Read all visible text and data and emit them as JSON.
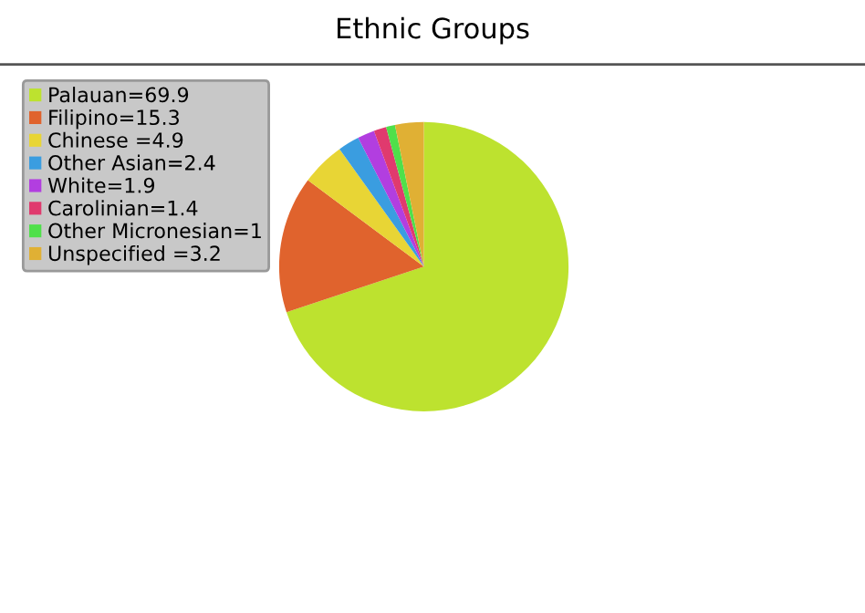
{
  "chart_data": {
    "type": "pie",
    "title": "Ethnic Groups",
    "categories": [
      "Palauan=69.9",
      "Filipino=15.3",
      "Chinese =4.9",
      "Other Asian=2.4",
      "White=1.9",
      "Carolinian=1.4",
      "Other Micronesian=1",
      "Unspecified =3.2"
    ],
    "values": [
      69.9,
      15.3,
      4.9,
      2.4,
      1.9,
      1.4,
      1.0,
      3.2
    ],
    "colors": [
      "#bde22f",
      "#e0632d",
      "#e8d535",
      "#3a9de0",
      "#b23ee0",
      "#e03a6e",
      "#4fe04a",
      "#e0b034"
    ],
    "legend": "top left"
  }
}
